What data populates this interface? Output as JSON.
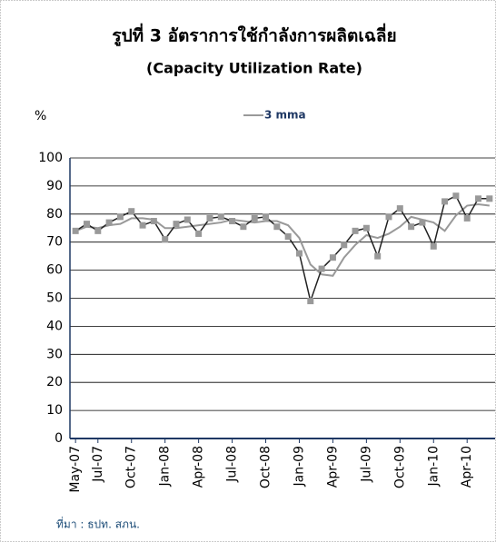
{
  "chart_data": {
    "type": "line",
    "title": "รูปที่ 3 อัตราการใช้กำลังการผลิตเฉลี่ย",
    "subtitle": "(Capacity Utilization Rate)",
    "y_label": "%",
    "note": "ที่มา : ธปท. สภน.",
    "categories": [
      "May-07",
      null,
      "Jul-07",
      null,
      null,
      "Oct-07",
      null,
      null,
      "Jan-08",
      null,
      null,
      "Apr-08",
      null,
      null,
      "Jul-08",
      null,
      null,
      "Oct-08",
      null,
      null,
      "Jan-09",
      null,
      null,
      "Apr-09",
      null,
      null,
      "Jul-09",
      null,
      null,
      "Oct-09",
      null,
      null,
      "Jan-10",
      null,
      null,
      "Apr-10",
      null,
      null
    ],
    "series": [
      {
        "color": "#222222",
        "marker_color": "#999999",
        "values": [
          74,
          76.5,
          74,
          77,
          79,
          81,
          76,
          77.5,
          71,
          76.5,
          78,
          73,
          78.5,
          79,
          77.5,
          75.5,
          78.5,
          79,
          75.5,
          72,
          66,
          49,
          60.5,
          64.5,
          69,
          74,
          75,
          65,
          79,
          82,
          75.5,
          77,
          68.5,
          84.5,
          86.5,
          78.5,
          85.5,
          85.5
        ]
      },
      {
        "name": "3 mma",
        "color": "#999999",
        "values": [
          74,
          75.5,
          75,
          76,
          76.5,
          78.5,
          78.5,
          78,
          75,
          75,
          75.5,
          76,
          76.5,
          77,
          78,
          77.5,
          77,
          77.5,
          77.5,
          76,
          71.5,
          62,
          58.5,
          58,
          64.5,
          69,
          72.5,
          71.5,
          73,
          75.5,
          79,
          78,
          77,
          74,
          79.5,
          83,
          83.5,
          83
        ]
      }
    ],
    "ylim": [
      0,
      100
    ],
    "yticks": [
      0,
      10,
      20,
      30,
      40,
      50,
      60,
      70,
      80,
      90,
      100
    ],
    "grid": true
  }
}
